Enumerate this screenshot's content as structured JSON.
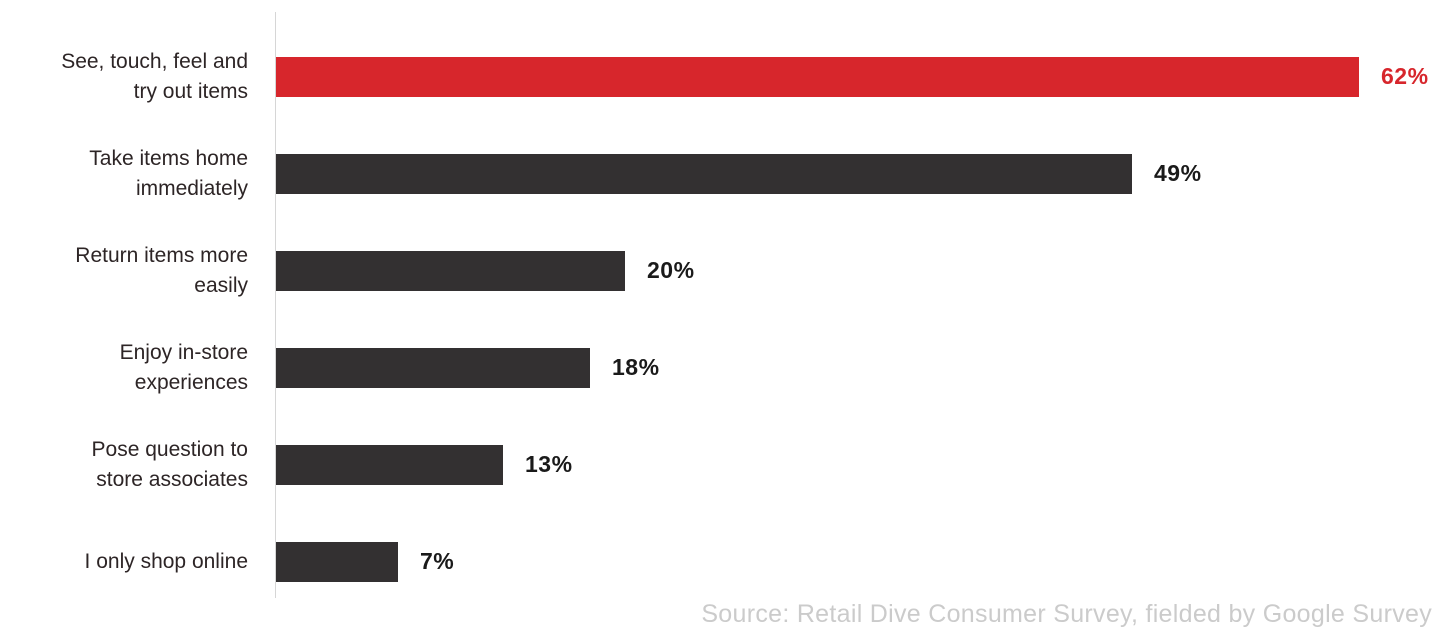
{
  "chart_data": {
    "type": "bar",
    "orientation": "horizontal",
    "title": "",
    "xlabel": "",
    "ylabel": "",
    "categories": [
      "See, touch, feel and\ntry out items",
      "Take items home\nimmediately",
      "Return items more\neasily",
      "Enjoy in-store\nexperiences",
      "Pose question to\nstore associates",
      "I only shop online"
    ],
    "values": [
      62,
      49,
      20,
      18,
      13,
      7
    ],
    "value_labels": [
      "62%",
      "49%",
      "20%",
      "18%",
      "13%",
      "7%"
    ],
    "xlim": [
      0,
      66
    ],
    "grid": false,
    "legend": "none",
    "highlight_index": 0,
    "colors": {
      "highlight_bar": "#d7262c",
      "default_bar": "#333031",
      "axis_line": "#d6d6d6",
      "category_label": "#2d2526",
      "value_label": "#1a1a1a",
      "source_text": "#cbcbcb"
    },
    "source": "Source: Retail Dive Consumer Survey, fielded by Google Survey"
  }
}
